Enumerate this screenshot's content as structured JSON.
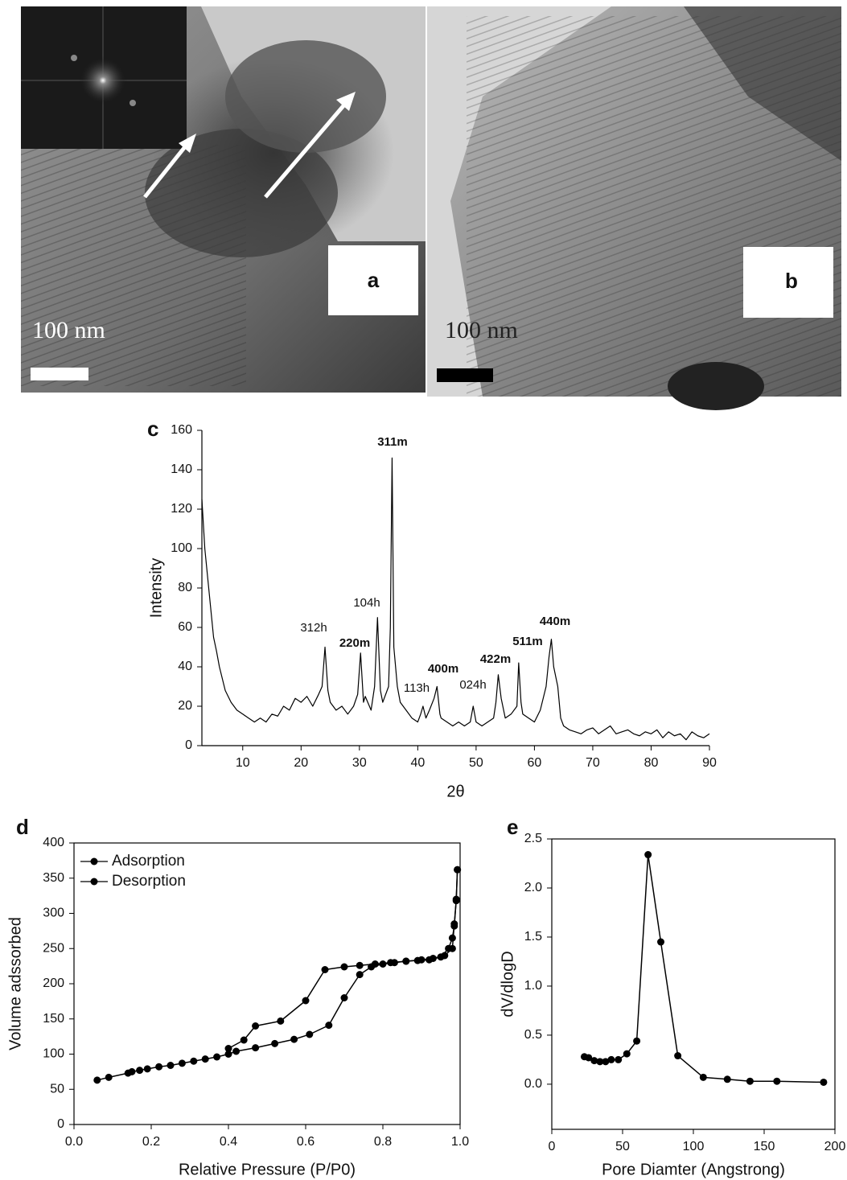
{
  "images": [
    {
      "label": "a",
      "scale": "100 nm"
    },
    {
      "label": "b",
      "scale": "100 nm"
    }
  ],
  "chart_data": [
    {
      "type": "line",
      "label": "c",
      "xlabel": "2θ",
      "ylabel": "Intensity",
      "color": "#000000",
      "x": [
        3,
        3.5,
        4,
        4.5,
        5,
        5.5,
        6,
        7,
        8,
        9,
        10,
        11,
        12,
        13,
        14,
        15,
        16,
        17,
        18,
        19,
        20,
        21,
        22,
        23,
        23.6,
        24.1,
        24.6,
        25,
        26,
        27,
        28,
        29,
        29.7,
        30.2,
        30.7,
        31,
        32,
        32.6,
        33.1,
        33.6,
        34,
        35,
        35.3,
        35.6,
        35.9,
        36.5,
        37,
        38,
        39,
        40,
        40.5,
        40.9,
        41.4,
        42,
        42.8,
        43.3,
        43.8,
        44,
        45,
        46,
        47,
        48,
        49,
        49.5,
        50,
        51,
        52,
        53,
        53.4,
        53.8,
        54.3,
        55,
        56,
        57,
        57.3,
        57.7,
        58,
        59,
        60,
        61,
        62,
        62.5,
        62.9,
        63.3,
        64,
        64.5,
        65,
        66,
        67,
        68,
        69,
        70,
        71,
        72,
        73,
        74,
        75,
        76,
        77,
        78,
        79,
        80,
        81,
        82,
        83,
        84,
        85,
        86,
        87,
        88,
        89,
        90
      ],
      "values": [
        125,
        100,
        85,
        70,
        55,
        48,
        40,
        28,
        22,
        18,
        16,
        14,
        12,
        14,
        12,
        16,
        15,
        20,
        18,
        24,
        22,
        25,
        20,
        26,
        30,
        50,
        28,
        22,
        18,
        20,
        16,
        20,
        26,
        47,
        22,
        25,
        18,
        30,
        65,
        28,
        22,
        30,
        60,
        146,
        50,
        30,
        22,
        18,
        14,
        12,
        16,
        20,
        14,
        18,
        24,
        30,
        16,
        14,
        12,
        10,
        12,
        10,
        12,
        20,
        12,
        10,
        12,
        14,
        22,
        36,
        24,
        14,
        16,
        20,
        42,
        22,
        16,
        14,
        12,
        18,
        30,
        45,
        54,
        40,
        30,
        14,
        10,
        8,
        7,
        6,
        8,
        9,
        6,
        8,
        10,
        6,
        7,
        8,
        6,
        5,
        7,
        6,
        8,
        4,
        7,
        5,
        6,
        3,
        7,
        5,
        4,
        6
      ],
      "xlim": [
        3,
        90
      ],
      "xticks": [
        10,
        20,
        30,
        40,
        50,
        60,
        70,
        80,
        90
      ],
      "ylim": [
        0,
        160
      ],
      "yticks": [
        0,
        20,
        40,
        60,
        80,
        100,
        120,
        140,
        160
      ],
      "annotations": [
        {
          "text": "311m",
          "bold": true
        },
        {
          "text": "104h",
          "bold": false
        },
        {
          "text": "312h",
          "bold": false
        },
        {
          "text": "220m",
          "bold": true
        },
        {
          "text": "113h",
          "bold": false
        },
        {
          "text": "400m",
          "bold": true
        },
        {
          "text": "024h",
          "bold": false
        },
        {
          "text": "422m",
          "bold": true
        },
        {
          "text": "511m",
          "bold": true
        },
        {
          "text": "440m",
          "bold": true
        }
      ]
    },
    {
      "type": "line",
      "label": "d",
      "xlabel": "Relative Pressure (P/P0)",
      "ylabel": "Volume adssorbed",
      "marker": "circle",
      "legend": "upper left",
      "frame": true,
      "series": [
        {
          "name": "Adsorption",
          "color": "#000000",
          "x": [
            0.06,
            0.09,
            0.14,
            0.15,
            0.17,
            0.19,
            0.22,
            0.25,
            0.28,
            0.31,
            0.34,
            0.37,
            0.4,
            0.42,
            0.47,
            0.52,
            0.57,
            0.61,
            0.66,
            0.7,
            0.74,
            0.77,
            0.8,
            0.83,
            0.86,
            0.89,
            0.92,
            0.95,
            0.97,
            0.98,
            0.985,
            0.99,
            0.993
          ],
          "values": [
            63,
            67,
            73,
            75,
            77,
            79,
            82,
            84,
            87,
            90,
            93,
            96,
            100,
            104,
            109,
            115,
            121,
            128,
            141,
            180,
            213,
            224,
            228,
            230,
            232,
            233,
            234,
            238,
            250,
            265,
            282,
            320,
            362
          ]
        },
        {
          "name": "Desorption",
          "color": "#000000",
          "x": [
            0.993,
            0.99,
            0.985,
            0.98,
            0.96,
            0.93,
            0.9,
            0.86,
            0.82,
            0.78,
            0.74,
            0.7,
            0.65,
            0.6,
            0.535,
            0.47,
            0.44,
            0.4
          ],
          "values": [
            362,
            318,
            285,
            250,
            240,
            236,
            234,
            232,
            230,
            228,
            226,
            224,
            220,
            176,
            147,
            140,
            120,
            108
          ]
        }
      ],
      "xlim": [
        0,
        1
      ],
      "xticks": [
        {
          "value": 0,
          "label": "0.0"
        },
        0.2,
        0.4,
        0.6,
        0.8,
        {
          "value": 1,
          "label": "1.0"
        }
      ],
      "ylim": [
        0,
        400
      ],
      "yticks": [
        0,
        50,
        100,
        150,
        200,
        250,
        300,
        350,
        400
      ]
    },
    {
      "type": "line",
      "label": "e",
      "xlabel": "Pore Diamter (Angstrong)",
      "ylabel": "dV/dlogD",
      "marker": "circle",
      "frame": true,
      "color": "#000000",
      "x": [
        23,
        26,
        30,
        34,
        38,
        42,
        47,
        53,
        60,
        68,
        77,
        89,
        107,
        124,
        140,
        159,
        192
      ],
      "values": [
        0.28,
        0.27,
        0.24,
        0.23,
        0.23,
        0.25,
        0.25,
        0.31,
        0.44,
        2.34,
        1.45,
        0.29,
        0.07,
        0.05,
        0.03,
        0.03,
        0.02
      ],
      "xlim": [
        0,
        200
      ],
      "xticks": [
        0,
        50,
        100,
        150,
        200
      ],
      "ylim": [
        -0.46,
        2.5
      ],
      "yticks": [
        {
          "value": 0,
          "label": "0.0"
        },
        0.5,
        {
          "value": 1,
          "label": "1.0"
        },
        1.5,
        {
          "value": 2,
          "label": "2.0"
        },
        2.5
      ]
    }
  ]
}
